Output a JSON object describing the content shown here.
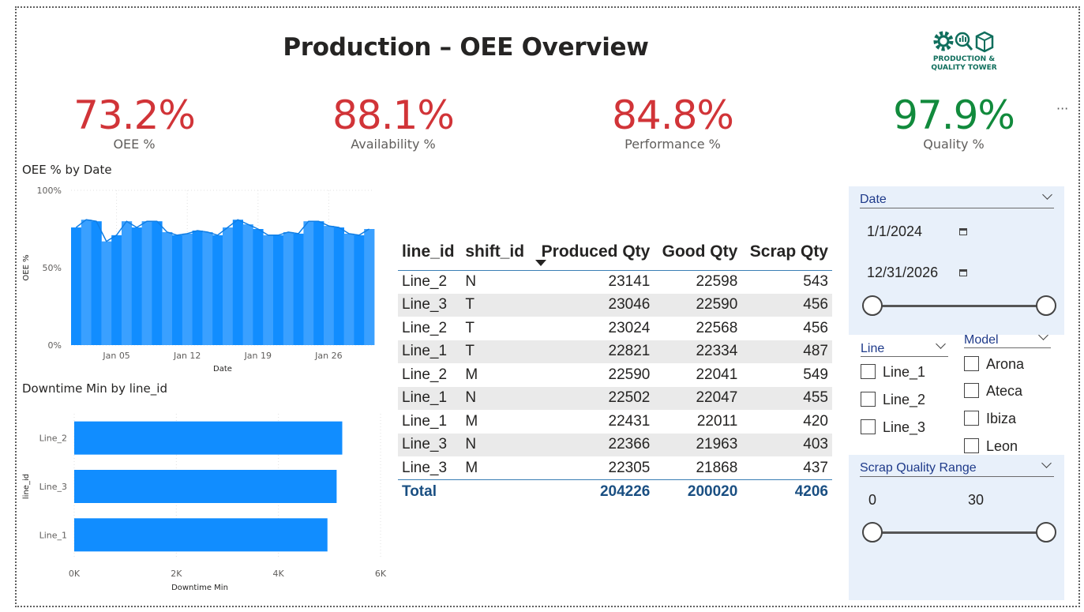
{
  "title": "Production – OEE Overview",
  "logo": {
    "line1": "PRODUCTION &",
    "line2": "QUALITY TOWER"
  },
  "kpis": [
    {
      "value": "73.2%",
      "label": "OEE %",
      "color": "#d13438"
    },
    {
      "value": "88.1%",
      "label": "Availability %",
      "color": "#d13438"
    },
    {
      "value": "84.8%",
      "label": "Performance %",
      "color": "#d13438"
    },
    {
      "value": "97.9%",
      "label": "Quality %",
      "color": "#118a3c"
    }
  ],
  "oee_chart_title": "OEE % by Date",
  "downtime_chart_title": "Downtime Min by line_id",
  "chart_data": [
    {
      "type": "area",
      "title": "OEE % by Date",
      "xlabel": "Date",
      "ylabel": "OEE %",
      "y_ticks": [
        "0%",
        "50%",
        "100%"
      ],
      "x_ticks": [
        "Jan 05",
        "Jan 12",
        "Jan 19",
        "Jan 26"
      ],
      "ylim": [
        0,
        100
      ],
      "grid": true,
      "x": [
        "Jan 01",
        "Jan 02",
        "Jan 03",
        "Jan 04",
        "Jan 05",
        "Jan 06",
        "Jan 07",
        "Jan 08",
        "Jan 09",
        "Jan 10",
        "Jan 11",
        "Jan 12",
        "Jan 13",
        "Jan 14",
        "Jan 15",
        "Jan 16",
        "Jan 17",
        "Jan 18",
        "Jan 19",
        "Jan 20",
        "Jan 21",
        "Jan 22",
        "Jan 23",
        "Jan 24",
        "Jan 25",
        "Jan 26",
        "Jan 27",
        "Jan 28",
        "Jan 29",
        "Jan 30"
      ],
      "values": [
        76,
        81,
        80,
        67,
        71,
        80,
        76,
        80,
        80,
        73,
        71,
        72,
        74,
        73,
        71,
        76,
        81,
        78,
        75,
        71,
        71,
        73,
        72,
        80,
        80,
        77,
        76,
        72,
        71,
        75
      ],
      "color": "#118dff"
    },
    {
      "type": "bar",
      "orientation": "horizontal",
      "title": "Downtime Min by line_id",
      "xlabel": "Downtime Min",
      "ylabel": "line_id",
      "categories": [
        "Line_2",
        "Line_3",
        "Line_1"
      ],
      "values": [
        5250,
        5140,
        4960
      ],
      "x_ticks": [
        "0K",
        "2K",
        "4K",
        "6K"
      ],
      "xlim": [
        0,
        6000
      ],
      "grid": true,
      "color": "#118dff"
    }
  ],
  "table": {
    "columns": [
      "line_id",
      "shift_id",
      "Produced Qty",
      "Good Qty",
      "Scrap Qty"
    ],
    "rows": [
      [
        "Line_2",
        "N",
        "23141",
        "22598",
        "543"
      ],
      [
        "Line_3",
        "T",
        "23046",
        "22590",
        "456"
      ],
      [
        "Line_2",
        "T",
        "23024",
        "22568",
        "456"
      ],
      [
        "Line_1",
        "T",
        "22821",
        "22334",
        "487"
      ],
      [
        "Line_2",
        "M",
        "22590",
        "22041",
        "549"
      ],
      [
        "Line_1",
        "N",
        "22502",
        "22047",
        "455"
      ],
      [
        "Line_1",
        "M",
        "22431",
        "22011",
        "420"
      ],
      [
        "Line_3",
        "N",
        "22366",
        "21963",
        "403"
      ],
      [
        "Line_3",
        "M",
        "22305",
        "21868",
        "437"
      ]
    ],
    "total": {
      "label": "Total",
      "produced": "204226",
      "good": "200020",
      "scrap": "4206"
    }
  },
  "slicers": {
    "date": {
      "title": "Date",
      "start": "1/1/2024",
      "end": "12/31/2026"
    },
    "line": {
      "title": "Line",
      "options": [
        "Line_1",
        "Line_2",
        "Line_3"
      ]
    },
    "model": {
      "title": "Model",
      "options": [
        "Arona",
        "Ateca",
        "Ibiza",
        "Leon"
      ]
    },
    "scrap": {
      "title": "Scrap Quality Range",
      "min": "0",
      "max": "30"
    }
  }
}
